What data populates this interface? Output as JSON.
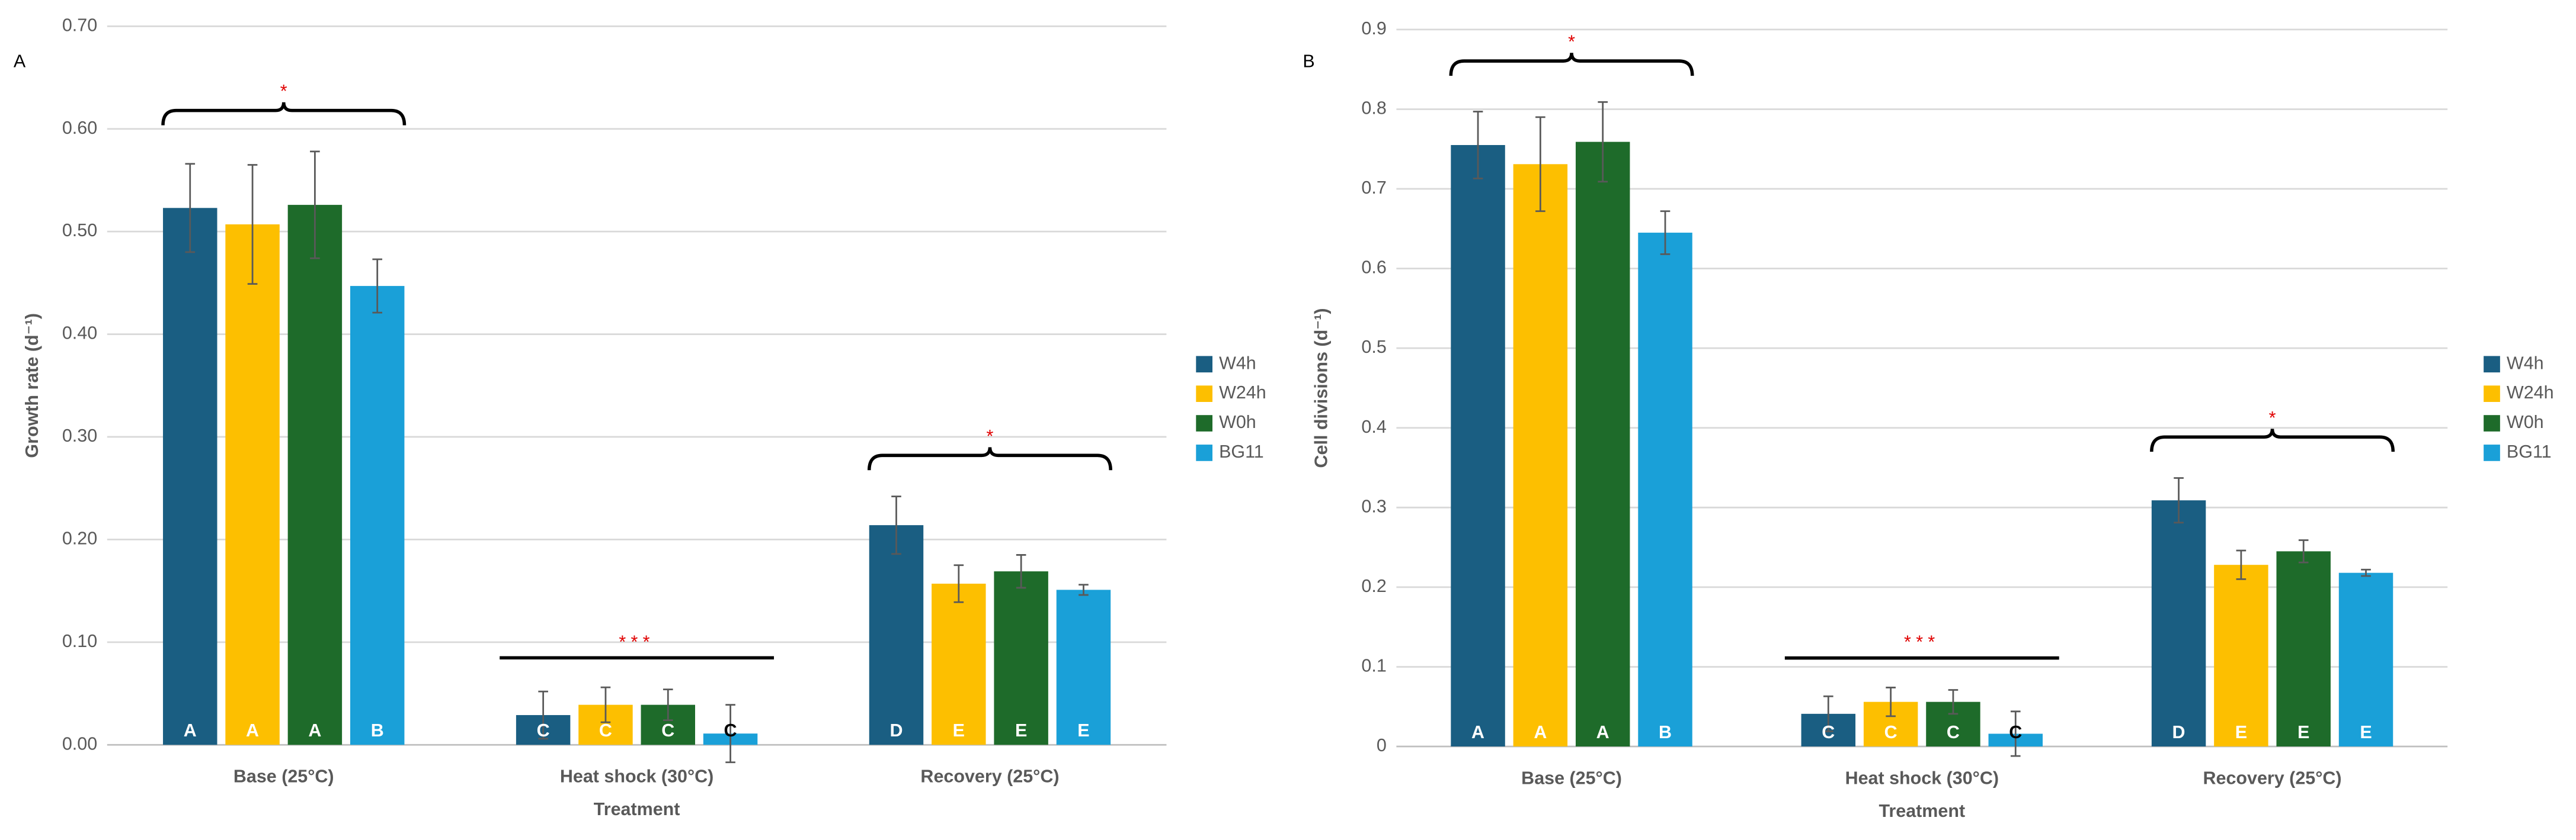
{
  "chart_data": [
    {
      "type": "bar",
      "panel": "A",
      "ylabel": "Growth rate (d⁻¹)",
      "xlabel": "Treatment",
      "categories": [
        "Base (25°C)",
        "Heat shock (30°C)",
        "Recovery (25°C)"
      ],
      "series": [
        {
          "name": "W4h",
          "color": "#1a5e82",
          "values": [
            0.523,
            0.029,
            0.214
          ],
          "errors": [
            0.043,
            0.023,
            0.028
          ],
          "letters": [
            "A",
            "C",
            "D"
          ]
        },
        {
          "name": "W24h",
          "color": "#fdbf00",
          "values": [
            0.507,
            0.039,
            0.157
          ],
          "errors": [
            0.058,
            0.017,
            0.018
          ],
          "letters": [
            "A",
            "C",
            "E"
          ]
        },
        {
          "name": "W0h",
          "color": "#1e6b2a",
          "values": [
            0.526,
            0.039,
            0.169
          ],
          "errors": [
            0.052,
            0.015,
            0.016
          ],
          "letters": [
            "A",
            "C",
            "E"
          ]
        },
        {
          "name": "BG11",
          "color": "#1aa0d8",
          "values": [
            0.447,
            0.011,
            0.151
          ],
          "errors": [
            0.026,
            0.028,
            0.005
          ],
          "letters": [
            "B",
            "C",
            "E"
          ]
        }
      ],
      "annotations": [
        "*",
        "***",
        "*"
      ],
      "annotation_shapes": [
        "brace",
        "line",
        "brace"
      ],
      "ylim": [
        0,
        0.7
      ],
      "yticks": [
        {
          "value": 0,
          "label": "0.00"
        },
        {
          "value": 0.1,
          "label": "0.10"
        },
        {
          "value": 0.2,
          "label": "0.20"
        },
        {
          "value": 0.3,
          "label": "0.30"
        },
        {
          "value": 0.4,
          "label": "0.40"
        },
        {
          "value": 0.5,
          "label": "0.50"
        },
        {
          "value": 0.6,
          "label": "0.60"
        },
        {
          "value": 0.7,
          "label": "0.70"
        }
      ],
      "grid": true,
      "legend": "right"
    },
    {
      "type": "bar",
      "panel": "B",
      "ylabel": "Cell divisions (d⁻¹)",
      "xlabel": "Treatment",
      "categories": [
        "Base (25°C)",
        "Heat shock (30°C)",
        "Recovery (25°C)"
      ],
      "series": [
        {
          "name": "W4h",
          "color": "#1a5e82",
          "values": [
            0.755,
            0.041,
            0.309
          ],
          "errors": [
            0.042,
            0.022,
            0.028
          ],
          "letters": [
            "A",
            "C",
            "D"
          ]
        },
        {
          "name": "W24h",
          "color": "#fdbf00",
          "values": [
            0.731,
            0.056,
            0.228
          ],
          "errors": [
            0.059,
            0.018,
            0.018
          ],
          "letters": [
            "A",
            "C",
            "E"
          ]
        },
        {
          "name": "W0h",
          "color": "#1e6b2a",
          "values": [
            0.759,
            0.056,
            0.245
          ],
          "errors": [
            0.05,
            0.015,
            0.014
          ],
          "letters": [
            "A",
            "C",
            "E"
          ]
        },
        {
          "name": "BG11",
          "color": "#1aa0d8",
          "values": [
            0.645,
            0.016,
            0.218
          ],
          "errors": [
            0.027,
            0.028,
            0.004
          ],
          "letters": [
            "B",
            "C",
            "E"
          ]
        }
      ],
      "annotations": [
        "*",
        "***",
        "*"
      ],
      "annotation_shapes": [
        "brace",
        "line",
        "brace"
      ],
      "ylim": [
        0,
        0.9
      ],
      "yticks": [
        0,
        0.1,
        0.2,
        0.3,
        0.4,
        0.5,
        0.6,
        0.7,
        0.8,
        0.9
      ],
      "grid": true,
      "legend": "right"
    }
  ]
}
